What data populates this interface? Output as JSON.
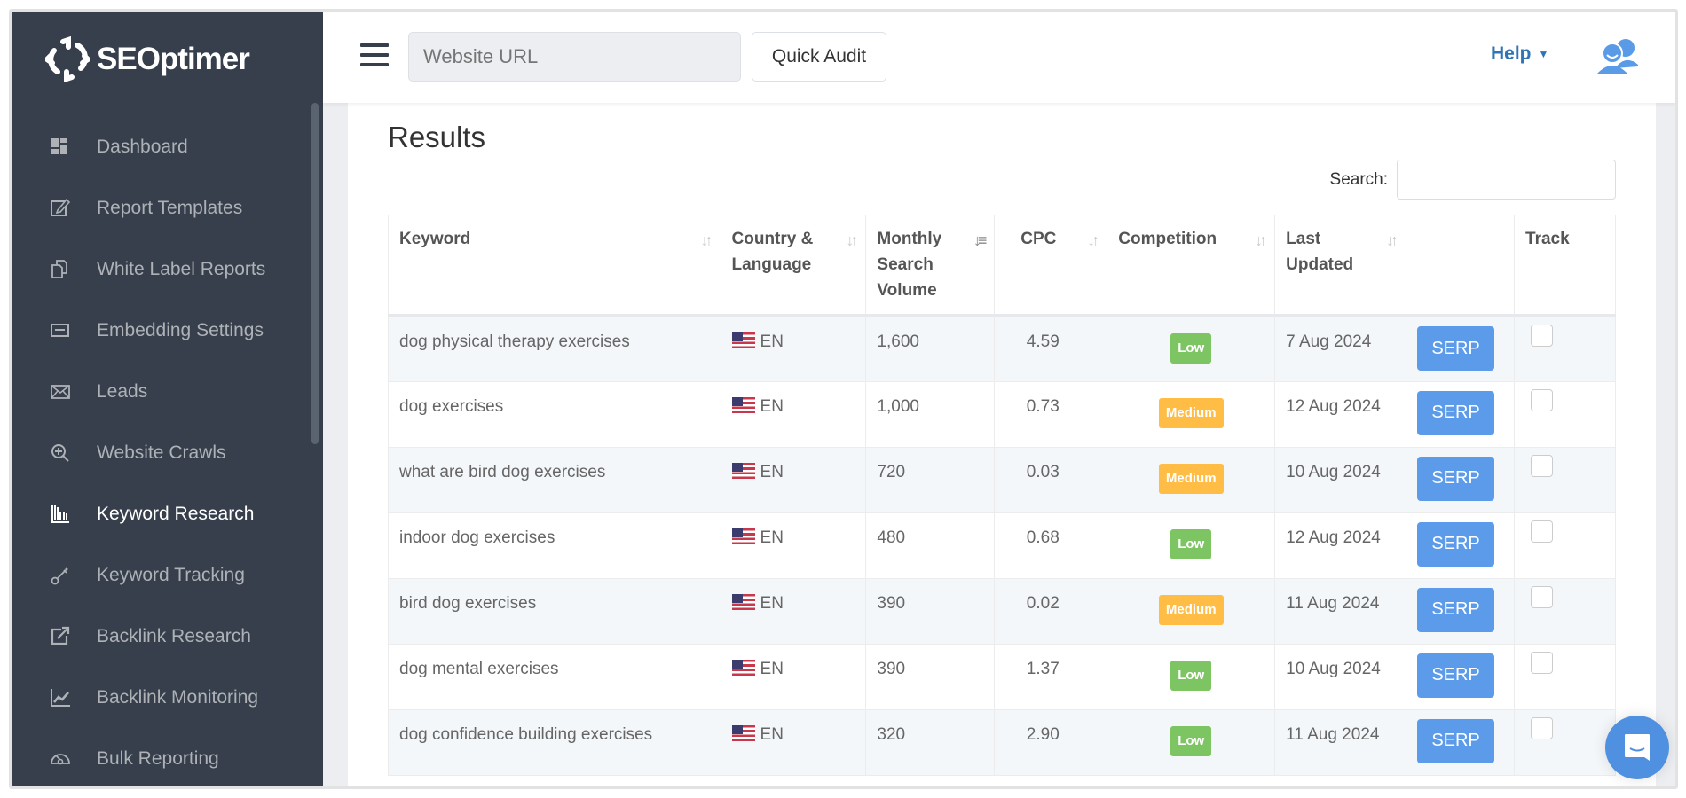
{
  "brand": {
    "name": "SEOptimer"
  },
  "sidebar": {
    "items": [
      {
        "label": "Dashboard",
        "icon": "dashboard-icon"
      },
      {
        "label": "Report Templates",
        "icon": "edit-icon"
      },
      {
        "label": "White Label Reports",
        "icon": "documents-icon"
      },
      {
        "label": "Embedding Settings",
        "icon": "embed-icon"
      },
      {
        "label": "Leads",
        "icon": "envelope-icon"
      },
      {
        "label": "Website Crawls",
        "icon": "zoom-in-icon"
      },
      {
        "label": "Keyword Research",
        "icon": "bar-chart-icon",
        "active": true
      },
      {
        "label": "Keyword Tracking",
        "icon": "key-icon"
      },
      {
        "label": "Backlink Research",
        "icon": "external-link-icon"
      },
      {
        "label": "Backlink Monitoring",
        "icon": "line-chart-icon"
      },
      {
        "label": "Bulk Reporting",
        "icon": "gauge-icon"
      }
    ]
  },
  "topbar": {
    "url_placeholder": "Website URL",
    "quick_audit": "Quick Audit",
    "help": "Help"
  },
  "results": {
    "title": "Results",
    "search_label": "Search:",
    "search_value": "",
    "columns": [
      "Keyword",
      "Country & Language",
      "Monthly Search Volume",
      "CPC",
      "Competition",
      "Last Updated",
      "",
      "Track"
    ],
    "rows": [
      {
        "keyword": "dog physical therapy exercises",
        "lang": "EN",
        "volume": "1,600",
        "cpc": "4.59",
        "competition": "Low",
        "updated": "7 Aug 2024"
      },
      {
        "keyword": "dog exercises",
        "lang": "EN",
        "volume": "1,000",
        "cpc": "0.73",
        "competition": "Medium",
        "updated": "12 Aug 2024"
      },
      {
        "keyword": "what are bird dog exercises",
        "lang": "EN",
        "volume": "720",
        "cpc": "0.03",
        "competition": "Medium",
        "updated": "10 Aug 2024"
      },
      {
        "keyword": "indoor dog exercises",
        "lang": "EN",
        "volume": "480",
        "cpc": "0.68",
        "competition": "Low",
        "updated": "12 Aug 2024"
      },
      {
        "keyword": "bird dog exercises",
        "lang": "EN",
        "volume": "390",
        "cpc": "0.02",
        "competition": "Medium",
        "updated": "11 Aug 2024"
      },
      {
        "keyword": "dog mental exercises",
        "lang": "EN",
        "volume": "390",
        "cpc": "1.37",
        "competition": "Low",
        "updated": "10 Aug 2024"
      },
      {
        "keyword": "dog confidence building exercises",
        "lang": "EN",
        "volume": "320",
        "cpc": "2.90",
        "competition": "Low",
        "updated": "11 Aug 2024"
      }
    ],
    "serp_label": "SERP"
  },
  "colors": {
    "sidebar": "#363f4b",
    "accent": "#5c9be9",
    "low": "#7dc462",
    "medium": "#ffbd45",
    "help": "#2f74b5"
  }
}
